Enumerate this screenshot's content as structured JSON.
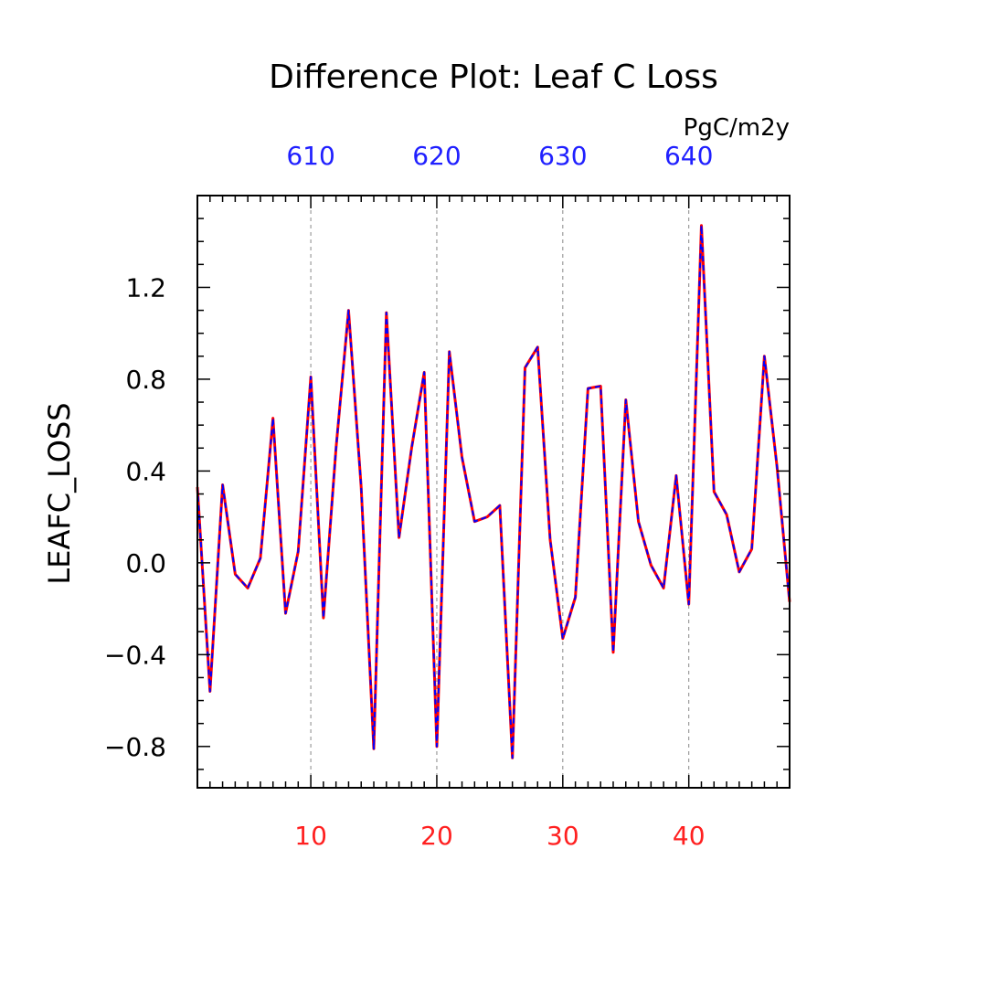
{
  "chart_data": {
    "type": "line",
    "title": "Difference Plot: Leaf C Loss",
    "units": "PgC/m2y",
    "ylabel": "LEAFC_LOSS",
    "xlim": [
      1,
      48
    ],
    "ylim": [
      -0.98,
      1.6
    ],
    "x_ticks": [
      {
        "value": 10,
        "label": "10"
      },
      {
        "value": 20,
        "label": "20"
      },
      {
        "value": 30,
        "label": "30"
      },
      {
        "value": 40,
        "label": "40"
      }
    ],
    "top_ticks": [
      {
        "value": 10,
        "label": "610"
      },
      {
        "value": 20,
        "label": "620"
      },
      {
        "value": 30,
        "label": "630"
      },
      {
        "value": 40,
        "label": "640"
      }
    ],
    "y_ticks": [
      {
        "value": -0.8,
        "label": "−0.8"
      },
      {
        "value": -0.4,
        "label": "−0.4"
      },
      {
        "value": 0.0,
        "label": "0.0"
      },
      {
        "value": 0.4,
        "label": "0.4"
      },
      {
        "value": 0.8,
        "label": "0.8"
      },
      {
        "value": 1.2,
        "label": "1.2"
      }
    ],
    "grid": "vertical dashed at major x ticks",
    "x": [
      1,
      2,
      3,
      4,
      5,
      6,
      7,
      8,
      9,
      10,
      11,
      12,
      13,
      14,
      15,
      16,
      17,
      18,
      19,
      20,
      21,
      22,
      23,
      24,
      25,
      26,
      27,
      28,
      29,
      30,
      31,
      32,
      33,
      34,
      35,
      36,
      37,
      38,
      39,
      40,
      41,
      42,
      43,
      44,
      45,
      46,
      47,
      48
    ],
    "series": [
      {
        "color": "#ff0000",
        "style": "solid",
        "values": [
          0.33,
          -0.56,
          0.34,
          -0.05,
          -0.11,
          0.02,
          0.63,
          -0.22,
          0.05,
          0.81,
          -0.24,
          0.5,
          1.1,
          0.33,
          -0.81,
          1.09,
          0.11,
          0.5,
          0.83,
          -0.8,
          0.92,
          0.46,
          0.18,
          0.2,
          0.25,
          -0.85,
          0.85,
          0.94,
          0.1,
          -0.33,
          -0.15,
          0.76,
          0.77,
          -0.39,
          0.71,
          0.18,
          -0.01,
          -0.11,
          0.38,
          -0.18,
          1.47,
          0.31,
          0.21,
          -0.04,
          0.06,
          0.9,
          0.42,
          -0.17
        ]
      },
      {
        "color": "#0000ff",
        "style": "dashed",
        "values": [
          0.33,
          -0.56,
          0.34,
          -0.05,
          -0.11,
          0.02,
          0.63,
          -0.22,
          0.05,
          0.81,
          -0.24,
          0.5,
          1.1,
          0.33,
          -0.81,
          1.09,
          0.11,
          0.5,
          0.83,
          -0.8,
          0.92,
          0.46,
          0.18,
          0.2,
          0.25,
          -0.85,
          0.85,
          0.94,
          0.1,
          -0.33,
          -0.15,
          0.76,
          0.77,
          -0.39,
          0.71,
          0.18,
          -0.01,
          -0.11,
          0.38,
          -0.18,
          1.47,
          0.31,
          0.21,
          -0.04,
          0.06,
          0.9,
          0.42,
          -0.17
        ]
      }
    ],
    "colors": {
      "bottom_tick_labels": "#ff2020",
      "top_tick_labels": "#2020ff",
      "axis": "#000000",
      "grid": "#888888"
    }
  }
}
